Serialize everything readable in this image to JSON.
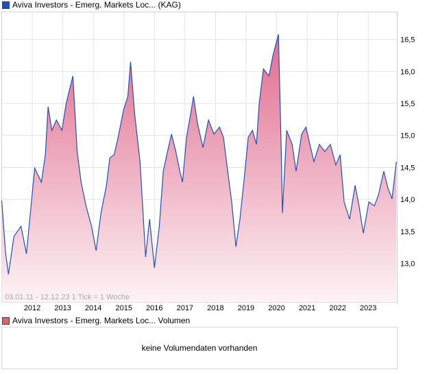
{
  "legend": {
    "price_label": "Aviva Investors - Emerg. Markets Loc... (KAG)",
    "price_color": "#1f4fbf",
    "volume_label": "Aviva Investors - Emerg. Markets Loc... Volumen",
    "volume_color": "#d06a6a"
  },
  "range_text": "03.01.11 - 12.12.23   1 Tick = 1 Woche",
  "volume_message": "keine Volumendaten vorhanden",
  "chart_data": {
    "type": "area",
    "title": "Aviva Investors - Emerg. Markets Loc... (KAG)",
    "xlabel": "",
    "ylabel": "",
    "xlim": [
      2011.0,
      2023.95
    ],
    "ylim": [
      12.39,
      16.93
    ],
    "grid": true,
    "x_ticks": [
      "2012",
      "2013",
      "2014",
      "2015",
      "2016",
      "2017",
      "2018",
      "2019",
      "2020",
      "2021",
      "2022",
      "2023"
    ],
    "y_ticks": [
      "13,0",
      "13,5",
      "14,0",
      "14,5",
      "15,0",
      "15,5",
      "16,0",
      "16,5"
    ],
    "y_tick_values": [
      13.0,
      13.5,
      14.0,
      14.5,
      15.0,
      15.5,
      16.0,
      16.5
    ],
    "points": [
      [
        2011.0,
        13.98
      ],
      [
        2011.13,
        13.15
      ],
      [
        2011.22,
        12.83
      ],
      [
        2011.4,
        13.42
      ],
      [
        2011.63,
        13.58
      ],
      [
        2011.81,
        13.15
      ],
      [
        2011.96,
        13.9
      ],
      [
        2012.08,
        14.49
      ],
      [
        2012.3,
        14.27
      ],
      [
        2012.43,
        14.7
      ],
      [
        2012.52,
        15.45
      ],
      [
        2012.64,
        15.08
      ],
      [
        2012.79,
        15.24
      ],
      [
        2012.97,
        15.08
      ],
      [
        2013.11,
        15.5
      ],
      [
        2013.33,
        15.93
      ],
      [
        2013.47,
        14.75
      ],
      [
        2013.6,
        14.27
      ],
      [
        2013.76,
        13.9
      ],
      [
        2013.94,
        13.58
      ],
      [
        2014.09,
        13.2
      ],
      [
        2014.25,
        13.79
      ],
      [
        2014.43,
        14.22
      ],
      [
        2014.54,
        14.65
      ],
      [
        2014.68,
        14.7
      ],
      [
        2014.81,
        14.97
      ],
      [
        2014.99,
        15.4
      ],
      [
        2015.13,
        15.61
      ],
      [
        2015.22,
        16.15
      ],
      [
        2015.35,
        15.35
      ],
      [
        2015.53,
        14.59
      ],
      [
        2015.71,
        13.1
      ],
      [
        2015.84,
        13.69
      ],
      [
        2016.0,
        12.93
      ],
      [
        2016.16,
        13.58
      ],
      [
        2016.29,
        14.44
      ],
      [
        2016.43,
        14.75
      ],
      [
        2016.56,
        15.02
      ],
      [
        2016.7,
        14.75
      ],
      [
        2016.83,
        14.44
      ],
      [
        2016.92,
        14.27
      ],
      [
        2017.05,
        14.97
      ],
      [
        2017.19,
        15.35
      ],
      [
        2017.28,
        15.61
      ],
      [
        2017.41,
        15.19
      ],
      [
        2017.59,
        14.81
      ],
      [
        2017.77,
        15.24
      ],
      [
        2017.95,
        15.02
      ],
      [
        2018.13,
        15.13
      ],
      [
        2018.26,
        14.97
      ],
      [
        2018.4,
        14.44
      ],
      [
        2018.53,
        13.96
      ],
      [
        2018.67,
        13.26
      ],
      [
        2018.8,
        13.69
      ],
      [
        2018.94,
        14.33
      ],
      [
        2019.07,
        14.97
      ],
      [
        2019.21,
        15.08
      ],
      [
        2019.34,
        14.86
      ],
      [
        2019.43,
        15.5
      ],
      [
        2019.57,
        16.04
      ],
      [
        2019.75,
        15.93
      ],
      [
        2019.88,
        16.25
      ],
      [
        2020.06,
        16.58
      ],
      [
        2020.15,
        14.81
      ],
      [
        2020.19,
        13.79
      ],
      [
        2020.33,
        15.08
      ],
      [
        2020.51,
        14.86
      ],
      [
        2020.64,
        14.44
      ],
      [
        2020.82,
        15.02
      ],
      [
        2020.96,
        15.13
      ],
      [
        2021.09,
        14.86
      ],
      [
        2021.22,
        14.59
      ],
      [
        2021.4,
        14.86
      ],
      [
        2021.58,
        14.75
      ],
      [
        2021.76,
        14.86
      ],
      [
        2021.94,
        14.54
      ],
      [
        2022.08,
        14.7
      ],
      [
        2022.21,
        13.96
      ],
      [
        2022.39,
        13.69
      ],
      [
        2022.57,
        14.22
      ],
      [
        2022.7,
        13.9
      ],
      [
        2022.84,
        13.47
      ],
      [
        2023.02,
        13.96
      ],
      [
        2023.2,
        13.9
      ],
      [
        2023.33,
        14.06
      ],
      [
        2023.51,
        14.44
      ],
      [
        2023.65,
        14.17
      ],
      [
        2023.78,
        14.01
      ],
      [
        2023.92,
        14.59
      ]
    ]
  }
}
